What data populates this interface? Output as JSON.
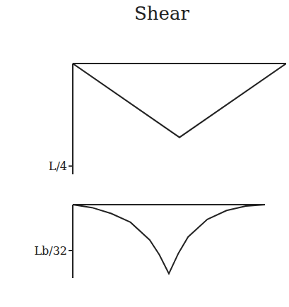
{
  "chart_data": [
    {
      "type": "line",
      "title": "Shear",
      "x": [
        0,
        0.5,
        1
      ],
      "values": [
        0,
        -0.18,
        0
      ],
      "xlim": [
        0,
        1
      ],
      "ylim": [
        -0.27,
        0
      ],
      "yticks": [
        {
          "value": -0.25,
          "label": "L/4"
        }
      ],
      "color": "#222222",
      "tick_labels": "y"
    },
    {
      "type": "line",
      "x": [
        0,
        0.1,
        0.2,
        0.3,
        0.4,
        0.45,
        0.5,
        0.55,
        0.6,
        0.7,
        0.8,
        0.9,
        1
      ],
      "values": [
        0,
        -0.002,
        -0.006,
        -0.012,
        -0.024,
        -0.034,
        -0.047,
        -0.033,
        -0.022,
        -0.01,
        -0.004,
        -0.001,
        0
      ],
      "xlim": [
        0,
        1
      ],
      "ylim": [
        -0.05,
        0
      ],
      "yticks": [
        {
          "value": -0.03125,
          "label": "Lb/32"
        }
      ],
      "color": "#222222",
      "tick_labels": "y"
    }
  ]
}
